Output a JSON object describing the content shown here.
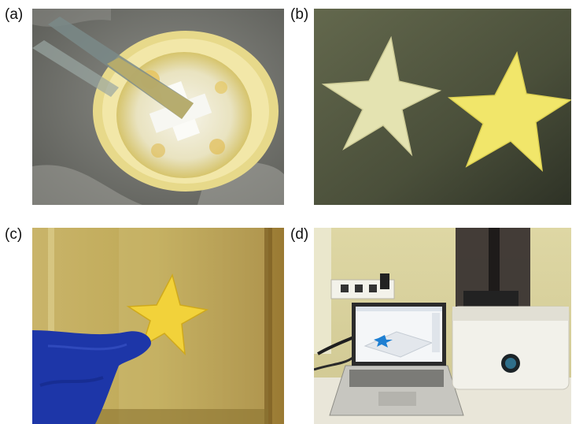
{
  "panels": [
    {
      "label": "(a)"
    },
    {
      "label": "(b)"
    },
    {
      "label": "(c)"
    },
    {
      "label": "(d)"
    }
  ],
  "colors": {
    "resin_yellow": "#f3e96a",
    "gray_surface": "#7d7e78",
    "star_pale": "#e6e5b4",
    "glove_blue": "#1d36a8",
    "printer_white": "#f2f1ea"
  }
}
